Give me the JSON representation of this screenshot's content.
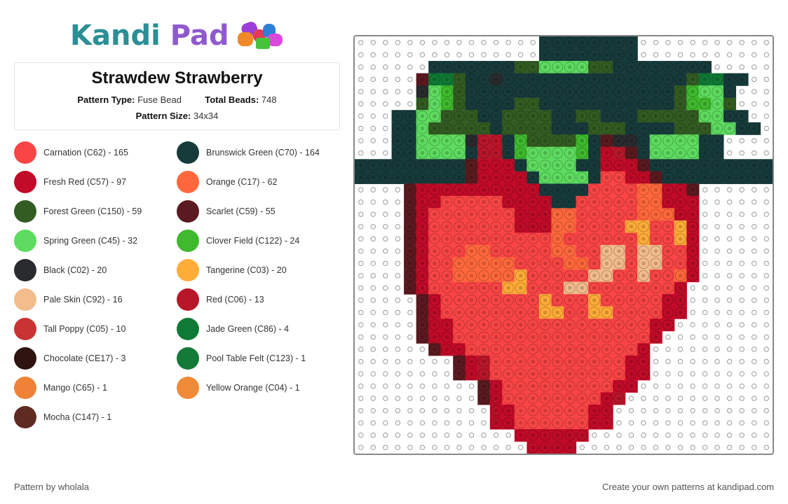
{
  "logo": {
    "part1": "Kandi",
    "part2": "Pad"
  },
  "pattern": {
    "title": "Strawdew Strawberry",
    "type_label": "Pattern Type:",
    "type_value": "Fuse Bead",
    "beads_label": "Total Beads:",
    "beads_value": "748",
    "size_label": "Pattern Size:",
    "size_value": "34x34"
  },
  "legend": [
    {
      "label": "Carnation (C62) - 165",
      "color": "#f94545"
    },
    {
      "label": "Brunswick Green (C70) - 164",
      "color": "#173b3b"
    },
    {
      "label": "Fresh Red (C57) - 97",
      "color": "#c10b28"
    },
    {
      "label": "Orange (C17) - 62",
      "color": "#ff683c"
    },
    {
      "label": "Forest Green (C150) - 59",
      "color": "#335c22"
    },
    {
      "label": "Scarlet (C59) - 55",
      "color": "#5b1a1f"
    },
    {
      "label": "Spring Green (C45) - 32",
      "color": "#5edc60"
    },
    {
      "label": "Clover Field (C122) - 24",
      "color": "#3fba2e"
    },
    {
      "label": "Black (C02) - 20",
      "color": "#2a2b2e"
    },
    {
      "label": "Tangerine (C03) - 20",
      "color": "#ffac38"
    },
    {
      "label": "Pale Skin (C92) - 16",
      "color": "#f2bc8c"
    },
    {
      "label": "Red (C06) - 13",
      "color": "#b8172a"
    },
    {
      "label": "Tall Poppy (C05) - 10",
      "color": "#c93333"
    },
    {
      "label": "Jade Green (C86) - 4",
      "color": "#0f7a35"
    },
    {
      "label": "Chocolate (CE17) - 3",
      "color": "#2d1410"
    },
    {
      "label": "Pool Table Felt (C123) - 1",
      "color": "#137a37"
    },
    {
      "label": "Mango (C65) - 1",
      "color": "#f08238"
    },
    {
      "label": "Yellow Orange (C04) - 1",
      "color": "#ef8a38"
    },
    {
      "label": "Mocha (C147) - 1",
      "color": "#5f2a22"
    }
  ],
  "board": {
    "palette": {
      "G": "#173b3b",
      "F": "#335c22",
      "S": "#5edc60",
      "C": "#3fba2e",
      "B": "#2a2b2e",
      "K": "#5b1a1f",
      "R": "#c10b28",
      "P": "#f94545",
      "O": "#ff683c",
      "T": "#ffac38",
      "L": "#f2bc8c",
      "D": "#b8172a",
      "J": "#0f7a35"
    },
    "rows": [
      "...............GGGGGGGG...........",
      "...............GGGGGGGG...........",
      "......GGGGGGGFFSSSSFFGGGGGGGG......",
      ".....KJJFGGBGGGGGGGGGGGGGGGFJJGG....",
      ".....BSCFGGGGGGGGGGGGGGGGGFCSSG....",
      ".....FSCFGGGGFFGGGGGGGGGGGFCCSF....",
      "...GGSSFFFGGFFFFGGFFGGGFFFFFSSGG...",
      "...GGSFFFFFGFFFFGGGFFFGGGGFFFSSGG..",
      "...GGSSSSBDDGCFFFFCGKBBGSSSSGG...",
      "...GGSSSSGDDGCSSSSCGRDKGSSSSGG...",
      "GGGGGGGGGKRRRGSSSSGGRRRKGGGGGGGGGG",
      "GGGGGGGGGKRRRRGSSSSGPPRRKGGGGGGGGG",
      "....KRRRRRRRRRRGGGGPPPPOORRK.....",
      "....KRRPPPPPRRRRGGPPPPPOORRR.....",
      "....KRPPPPPPPRRROOPPPPPOOORR.....",
      "....KRPPPPPPPRRROOPPPPTTPPTR.....",
      "....KRPPPPPPPPPPOPPPPPPTPPTR.....",
      "....KRPPPOOPPPPPOOPPLLPLLPPR.....",
      "....KRPPOOOOOPPPPOOPLLPLLPPR.....",
      "....KRPPOOOOOTPPPPPLLPPLPPOR.....",
      "....KRPPPPPPTTPPPLLPPPPPPPR......",
      ".....KRPPPPPPPPTPPPTPPPPPRR......",
      ".....KRPPPPPPPPTTPPTTPPPPRR......",
      ".....KRRPPPPPPPPPPPPPPPPRR......",
      ".....KRRPPPPPPPPPPPPPPPPR.......",
      "......KRRPPPPPPPPPPPPPPR.......",
      "........KRDPPPPPPPPPPPRR.......",
      "........KRDPPPPPPPPPPPRR.......",
      "..........KRPPPPPPPPPRR........",
      "..........KRPPPPPPPPRD.........",
      "...........RRPPPPPPRR..........",
      "...........RRPPPPPPRR..........",
      ".............RRRRRR............",
      "..............RRRR............."
    ]
  },
  "footer": {
    "left": "Pattern by wholala",
    "right": "Create your own patterns at kandipad.com"
  }
}
